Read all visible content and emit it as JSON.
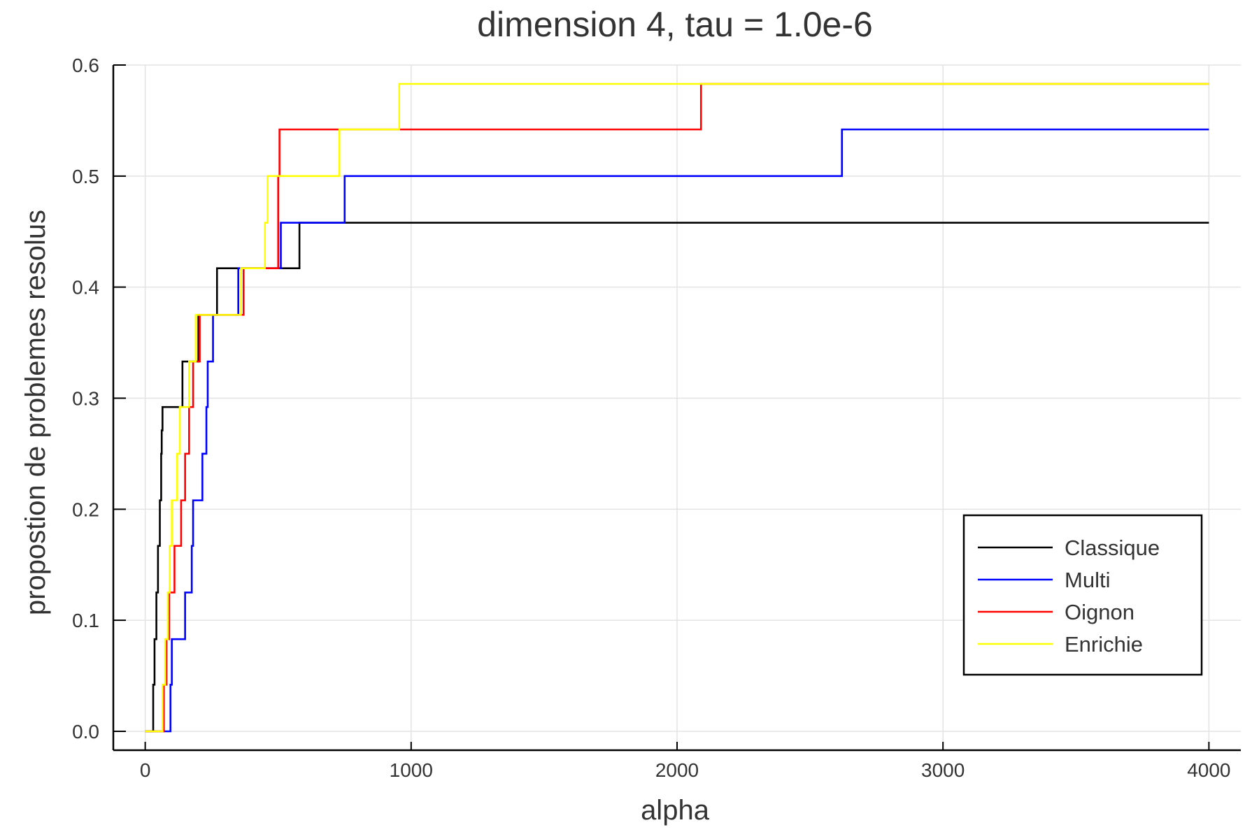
{
  "chart_data": {
    "type": "line",
    "step": "post",
    "title": "dimension 4, tau = 1.0e-6",
    "xlabel": "alpha",
    "ylabel": "propostion de problemes resolus",
    "xlim": [
      -120,
      4120
    ],
    "ylim": [
      -0.017,
      0.6
    ],
    "xticks": [
      0,
      1000,
      2000,
      3000,
      4000
    ],
    "yticks": [
      0.0,
      0.1,
      0.2,
      0.3,
      0.4,
      0.5,
      0.6
    ],
    "xtick_labels": [
      "0",
      "1000",
      "2000",
      "3000",
      "4000"
    ],
    "ytick_labels": [
      "0.0",
      "0.1",
      "0.2",
      "0.3",
      "0.4",
      "0.5",
      "0.6"
    ],
    "grid": true,
    "legend": {
      "position": "bottom-right"
    },
    "series": [
      {
        "name": "Classique",
        "color": "#000000",
        "x": [
          0,
          30,
          35,
          42,
          48,
          55,
          60,
          62,
          65,
          68,
          140,
          165,
          200,
          215,
          270,
          580,
          4000
        ],
        "y": [
          0.0,
          0.042,
          0.083,
          0.125,
          0.167,
          0.208,
          0.25,
          0.271,
          0.292,
          0.292,
          0.333,
          0.333,
          0.375,
          0.375,
          0.417,
          0.458,
          0.458
        ]
      },
      {
        "name": "Multi",
        "color": "#0000ff",
        "x": [
          0,
          95,
          100,
          105,
          150,
          175,
          180,
          215,
          230,
          235,
          255,
          280,
          350,
          510,
          750,
          2620,
          4000
        ],
        "y": [
          0.0,
          0.042,
          0.083,
          0.083,
          0.125,
          0.167,
          0.208,
          0.25,
          0.292,
          0.333,
          0.375,
          0.375,
          0.417,
          0.458,
          0.5,
          0.542,
          0.542
        ]
      },
      {
        "name": "Oignon",
        "color": "#ff0000",
        "x": [
          0,
          70,
          80,
          90,
          110,
          135,
          150,
          165,
          180,
          205,
          240,
          295,
          305,
          370,
          500,
          505,
          2090,
          4000
        ],
        "y": [
          0.0,
          0.042,
          0.083,
          0.125,
          0.167,
          0.208,
          0.25,
          0.292,
          0.333,
          0.375,
          0.375,
          0.375,
          0.375,
          0.417,
          0.5,
          0.542,
          0.583,
          0.583
        ]
      },
      {
        "name": "Enrichie",
        "color": "#ffff00",
        "x": [
          0,
          65,
          75,
          85,
          92,
          100,
          120,
          130,
          150,
          165,
          190,
          300,
          360,
          450,
          460,
          730,
          955,
          4000
        ],
        "y": [
          0.0,
          0.042,
          0.083,
          0.125,
          0.167,
          0.208,
          0.25,
          0.292,
          0.292,
          0.333,
          0.375,
          0.375,
          0.417,
          0.458,
          0.5,
          0.542,
          0.583,
          0.583
        ]
      }
    ]
  }
}
